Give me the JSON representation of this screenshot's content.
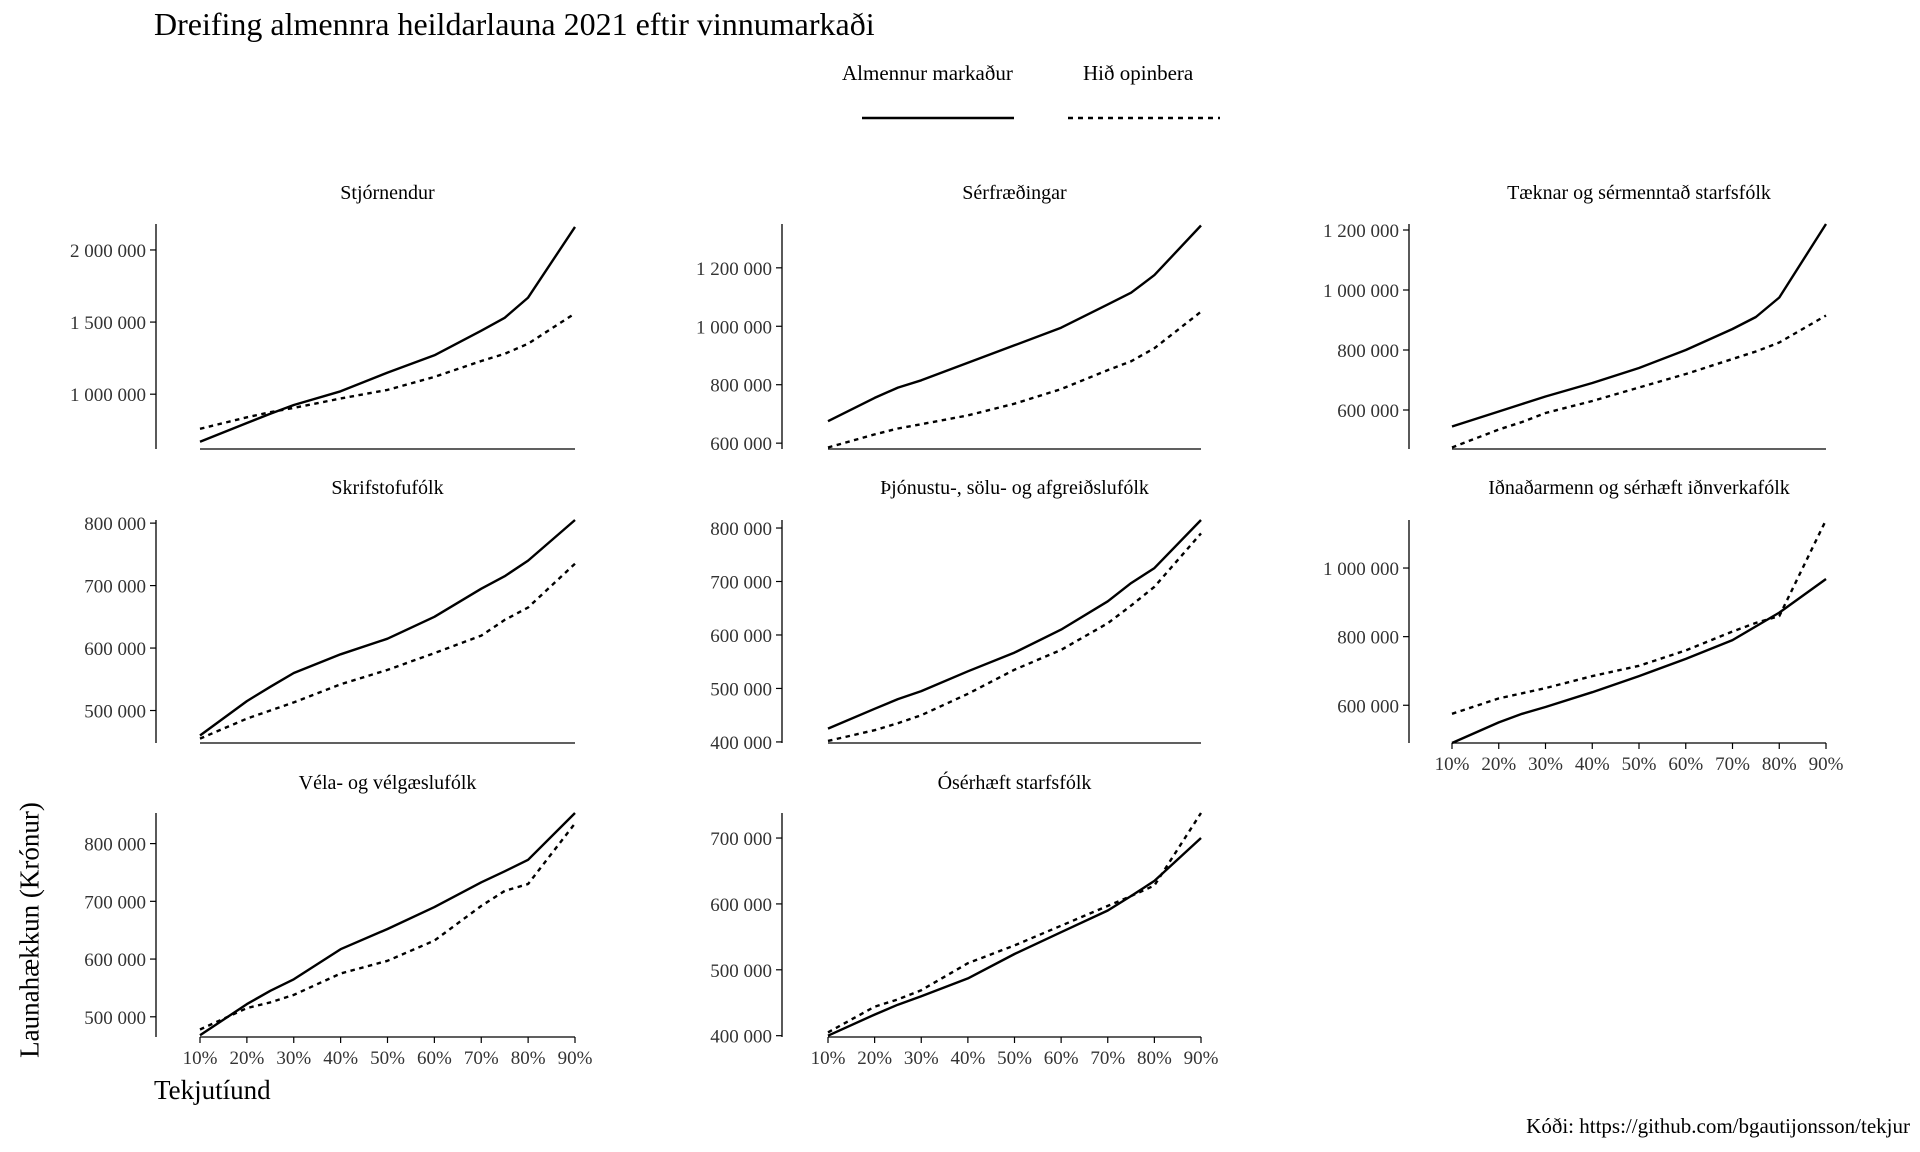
{
  "title": "Dreifing almennra heildarlauna 2021 eftir vinnumarkaði",
  "legend": {
    "items": [
      {
        "label": "Almennur markaður",
        "dash": "solid"
      },
      {
        "label": "Hið opinbera",
        "dash": "dotted"
      }
    ]
  },
  "axes": {
    "xlabel": "Tekjutíund",
    "ylabel": "Launahækkun (Krónur)"
  },
  "caption": "Kóði: https://github.com/bgautijonsson/tekjur",
  "chart_data": {
    "type": "line",
    "x": [
      10,
      20,
      25,
      30,
      40,
      50,
      60,
      70,
      75,
      80,
      90
    ],
    "x_tick_values": [
      10,
      20,
      30,
      40,
      50,
      60,
      70,
      80,
      90
    ],
    "x_tick_labels": [
      "10%",
      "20%",
      "30%",
      "40%",
      "50%",
      "60%",
      "70%",
      "80%",
      "90%"
    ],
    "grid": false,
    "legend_position": "top",
    "panels": [
      {
        "title": "Stjórnendur",
        "ylim": [
          620000,
          2180000
        ],
        "yticks": [
          1000000,
          1500000,
          2000000
        ],
        "ytick_labels": [
          "1 000 000",
          "1 500 000",
          "2 000 000"
        ],
        "show_x_ticks": false,
        "series": [
          {
            "name": "Almennur markaður",
            "values": [
              670000,
              800000,
              865000,
              925000,
              1020000,
              1150000,
              1270000,
              1440000,
              1530000,
              1670000,
              2160000
            ]
          },
          {
            "name": "Hið opinbera",
            "values": [
              760000,
              840000,
              875000,
              905000,
              970000,
              1030000,
              1120000,
              1230000,
              1280000,
              1350000,
              1560000
            ]
          }
        ]
      },
      {
        "title": "Sérfræðingar",
        "ylim": [
          580000,
          1350000
        ],
        "yticks": [
          600000,
          800000,
          1000000,
          1200000
        ],
        "ytick_labels": [
          "600 000",
          "800 000",
          "1 000 000",
          "1 200 000"
        ],
        "show_x_ticks": false,
        "series": [
          {
            "name": "Almennur markaður",
            "values": [
              675000,
              755000,
              790000,
              815000,
              875000,
              935000,
              995000,
              1075000,
              1115000,
              1175000,
              1345000
            ]
          },
          {
            "name": "Hið opinbera",
            "values": [
              585000,
              630000,
              650000,
              665000,
              695000,
              735000,
              785000,
              850000,
              880000,
              925000,
              1050000
            ]
          }
        ]
      },
      {
        "title": "Tæknar og sérmenntað starfsfólk",
        "ylim": [
          470000,
          1220000
        ],
        "yticks": [
          600000,
          800000,
          1000000,
          1200000
        ],
        "ytick_labels": [
          "600 000",
          "800 000",
          "1 000 000",
          "1 200 000"
        ],
        "show_x_ticks": false,
        "series": [
          {
            "name": "Almennur markaður",
            "values": [
              545000,
              595000,
              620000,
              645000,
              690000,
              740000,
              800000,
              870000,
              910000,
              975000,
              1220000
            ]
          },
          {
            "name": "Hið opinbera",
            "values": [
              475000,
              535000,
              560000,
              590000,
              630000,
              675000,
              720000,
              770000,
              795000,
              825000,
              915000
            ]
          }
        ]
      },
      {
        "title": "Skrifstofufólk",
        "ylim": [
          448000,
          805000
        ],
        "yticks": [
          500000,
          600000,
          700000,
          800000
        ],
        "ytick_labels": [
          "500 000",
          "600 000",
          "700 000",
          "800 000"
        ],
        "show_x_ticks": false,
        "series": [
          {
            "name": "Almennur markaður",
            "values": [
              460000,
              515000,
              538000,
              560000,
              590000,
              615000,
              650000,
              695000,
              715000,
              740000,
              805000
            ]
          },
          {
            "name": "Hið opinbera",
            "values": [
              455000,
              487000,
              500000,
              513000,
              542000,
              565000,
              592000,
              620000,
              645000,
              665000,
              735000
            ]
          }
        ]
      },
      {
        "title": "Þjónustu-, sölu- og afgreiðslufólk",
        "ylim": [
          398000,
          815000
        ],
        "yticks": [
          400000,
          500000,
          600000,
          700000,
          800000
        ],
        "ytick_labels": [
          "400 000",
          "500 000",
          "600 000",
          "700 000",
          "800 000"
        ],
        "show_x_ticks": false,
        "series": [
          {
            "name": "Almennur markaður",
            "values": [
              425000,
              462000,
              480000,
              495000,
              532000,
              567000,
              610000,
              663000,
              697000,
              725000,
              815000
            ]
          },
          {
            "name": "Hið opinbera",
            "values": [
              402000,
              422000,
              435000,
              450000,
              490000,
              535000,
              572000,
              622000,
              655000,
              690000,
              790000
            ]
          }
        ]
      },
      {
        "title": "Iðnaðarmenn og sérhæft iðnverkafólk",
        "ylim": [
          490000,
          1140000
        ],
        "yticks": [
          600000,
          800000,
          1000000
        ],
        "ytick_labels": [
          "600 000",
          "800 000",
          "1 000 000"
        ],
        "show_x_ticks": true,
        "series": [
          {
            "name": "Almennur markaður",
            "values": [
              490000,
              550000,
              575000,
              595000,
              638000,
              685000,
              735000,
              790000,
              830000,
              870000,
              968000
            ]
          },
          {
            "name": "Hið opinbera",
            "values": [
              575000,
              620000,
              635000,
              650000,
              685000,
              715000,
              760000,
              815000,
              840000,
              860000,
              1140000
            ]
          }
        ]
      },
      {
        "title": "Véla- og vélgæslufólk",
        "ylim": [
          465000,
          853000
        ],
        "yticks": [
          500000,
          600000,
          700000,
          800000
        ],
        "ytick_labels": [
          "500 000",
          "600 000",
          "700 000",
          "800 000"
        ],
        "show_x_ticks": true,
        "series": [
          {
            "name": "Almennur markaður",
            "values": [
              468000,
              522000,
              545000,
              565000,
              617000,
              652000,
              690000,
              733000,
              752000,
              772000,
              853000
            ]
          },
          {
            "name": "Hið opinbera",
            "values": [
              478000,
              515000,
              525000,
              538000,
              575000,
              597000,
              632000,
              692000,
              718000,
              730000,
              835000
            ]
          }
        ]
      },
      {
        "title": "Ósérhæft starfsfólk",
        "ylim": [
          398000,
          738000
        ],
        "yticks": [
          400000,
          500000,
          600000,
          700000
        ],
        "ytick_labels": [
          "400 000",
          "500 000",
          "600 000",
          "700 000"
        ],
        "show_x_ticks": true,
        "series": [
          {
            "name": "Almennur markaður",
            "values": [
              400000,
              432000,
              447000,
              460000,
              487000,
              524000,
              557000,
              590000,
              612000,
              635000,
              700000
            ]
          },
          {
            "name": "Hið opinbera",
            "values": [
              405000,
              444000,
              455000,
              469000,
              510000,
              537000,
              567000,
              597000,
              612000,
              628000,
              738000
            ]
          }
        ]
      }
    ]
  }
}
